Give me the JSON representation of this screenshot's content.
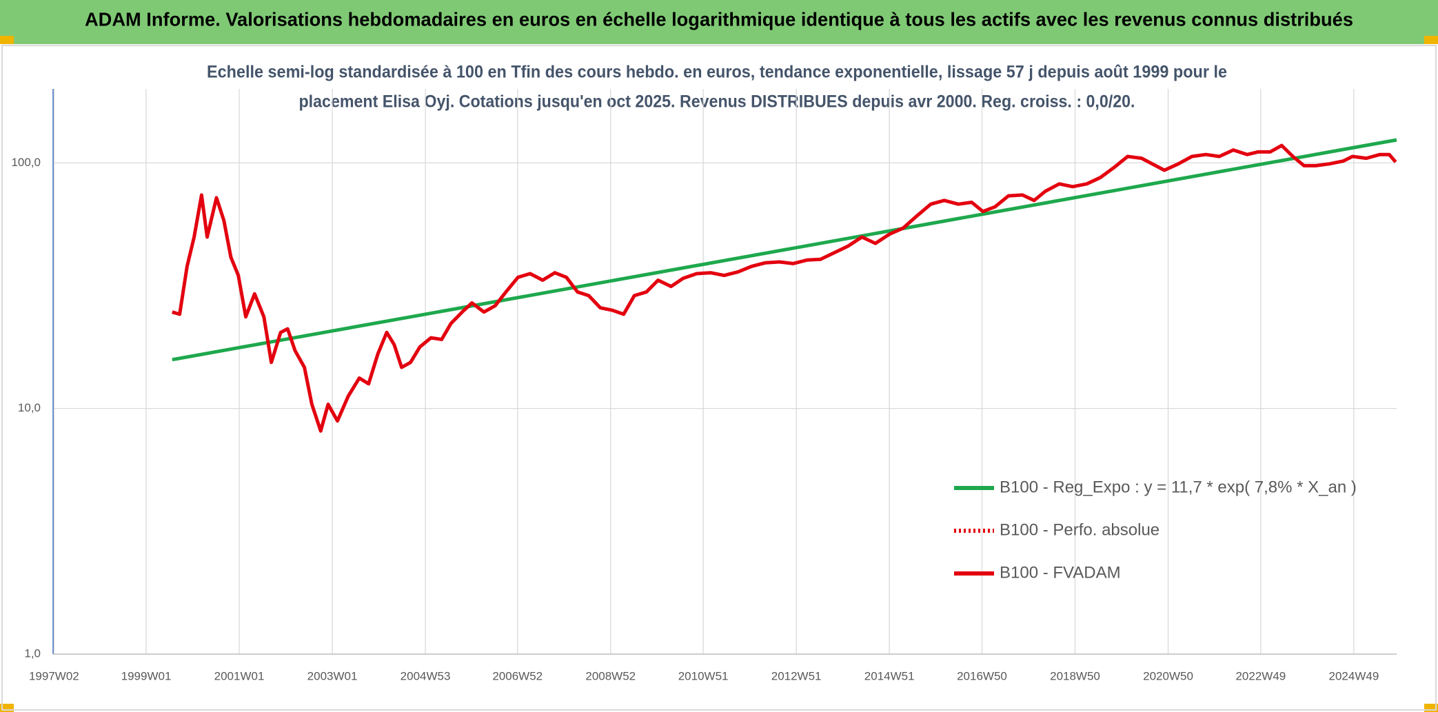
{
  "chart_data": {
    "type": "line",
    "title": "ADAM Informe. Valorisations hebdomadaires en euros en échelle logarithmique identique à tous les actifs avec les revenus connus distribués",
    "subtitle": [
      "Echelle semi-log standardisée à 100 en Tfin des cours hebdo. en euros, tendance exponentielle, lissage 57 j depuis août 1999 pour le",
      "placement Elisa Oyj. Cotations jusqu'en oct 2025. Revenus DISTRIBUES depuis avr 2000. Reg. croiss. : 0,0/20."
    ],
    "log_scale": true,
    "grid": true,
    "legend_position": "right",
    "xlim": [
      1997.0,
      2025.87
    ],
    "xticks": [
      {
        "value": 1997.02,
        "label": "1997W02"
      },
      {
        "value": 1999.0,
        "label": "1999W01"
      },
      {
        "value": 2001.0,
        "label": "2001W01"
      },
      {
        "value": 2003.0,
        "label": "2003W01"
      },
      {
        "value": 2005.0,
        "label": "2004W53"
      },
      {
        "value": 2006.98,
        "label": "2006W52"
      },
      {
        "value": 2008.98,
        "label": "2008W52"
      },
      {
        "value": 2010.97,
        "label": "2010W51"
      },
      {
        "value": 2012.97,
        "label": "2012W51"
      },
      {
        "value": 2014.97,
        "label": "2014W51"
      },
      {
        "value": 2016.96,
        "label": "2016W50"
      },
      {
        "value": 2018.96,
        "label": "2018W50"
      },
      {
        "value": 2020.96,
        "label": "2020W50"
      },
      {
        "value": 2022.95,
        "label": "2022W49"
      },
      {
        "value": 2024.95,
        "label": "2024W49"
      }
    ],
    "ylim": [
      1,
      200
    ],
    "yticks": [
      {
        "value": 1,
        "label": "1,0"
      },
      {
        "value": 10,
        "label": "10,0"
      },
      {
        "value": 100,
        "label": "100,0"
      }
    ],
    "series": [
      {
        "name": "B100 - Reg_Expo : y = 11,7 * exp( 7,8% *  X_an )",
        "color": "#1ea84d",
        "style": "solid",
        "x": [
          1999.56,
          2025.87
        ],
        "values": [
          15.8,
          124
        ]
      },
      {
        "name": "B100 - Perfo. absolue",
        "color": "#e3000f",
        "style": "dotted",
        "x": [],
        "values": []
      },
      {
        "name": "B100 - FVADAM",
        "color": "#e3000f",
        "style": "solid",
        "x": [
          1999.56,
          1999.72,
          1999.88,
          2000.03,
          2000.19,
          2000.31,
          2000.51,
          2000.67,
          2000.82,
          2000.98,
          2001.14,
          2001.33,
          2001.53,
          2001.69,
          2001.89,
          2002.04,
          2002.2,
          2002.4,
          2002.56,
          2002.75,
          2002.91,
          2003.11,
          2003.34,
          2003.58,
          2003.78,
          2003.98,
          2004.17,
          2004.33,
          2004.49,
          2004.68,
          2004.88,
          2005.12,
          2005.35,
          2005.55,
          2005.79,
          2006.0,
          2006.26,
          2006.5,
          2006.73,
          2006.99,
          2007.25,
          2007.52,
          2007.78,
          2008.03,
          2008.27,
          2008.51,
          2008.76,
          2009.02,
          2009.26,
          2009.49,
          2009.75,
          2010.0,
          2010.28,
          2010.54,
          2010.83,
          2011.13,
          2011.42,
          2011.72,
          2012.01,
          2012.31,
          2012.61,
          2012.9,
          2013.2,
          2013.49,
          2013.79,
          2014.08,
          2014.38,
          2014.67,
          2014.97,
          2015.27,
          2015.56,
          2015.86,
          2016.15,
          2016.45,
          2016.74,
          2016.98,
          2017.24,
          2017.53,
          2017.83,
          2018.08,
          2018.32,
          2018.62,
          2018.91,
          2019.21,
          2019.5,
          2019.8,
          2020.09,
          2020.39,
          2020.88,
          2021.18,
          2021.47,
          2021.77,
          2022.06,
          2022.36,
          2022.66,
          2022.89,
          2023.15,
          2023.4,
          2023.64,
          2023.88,
          2024.13,
          2024.43,
          2024.72,
          2024.92,
          2025.22,
          2025.51,
          2025.71,
          2025.85
        ],
        "values": [
          24.7,
          24.2,
          37.9,
          49.9,
          74.0,
          49.9,
          72.1,
          58.2,
          41.3,
          34.8,
          23.6,
          29.3,
          23.6,
          15.4,
          20.4,
          21.1,
          17.2,
          14.7,
          10.4,
          8.1,
          10.4,
          8.9,
          11.2,
          13.3,
          12.6,
          16.7,
          20.4,
          18.2,
          14.7,
          15.4,
          17.8,
          19.4,
          19.1,
          22.2,
          24.7,
          26.9,
          24.7,
          26.2,
          29.8,
          34.2,
          35.4,
          33.3,
          35.7,
          34.2,
          29.8,
          28.8,
          25.7,
          25.1,
          24.2,
          28.8,
          29.8,
          33.3,
          31.4,
          33.9,
          35.4,
          35.7,
          34.8,
          36.0,
          37.9,
          39.2,
          39.5,
          38.9,
          40.2,
          40.5,
          43.1,
          45.8,
          49.9,
          47.0,
          51.2,
          54.3,
          60.8,
          67.9,
          70.3,
          67.9,
          69.1,
          63.4,
          66.2,
          73.4,
          74.0,
          70.3,
          76.6,
          82.1,
          80.0,
          82.1,
          87.1,
          95.8,
          106.2,
          104.4,
          93.3,
          99.1,
          106.2,
          108.1,
          106.2,
          112.8,
          108.1,
          110.8,
          110.8,
          117.7,
          106.2,
          97.4,
          97.4,
          99.1,
          101.7,
          106.2,
          104.4,
          108.1,
          108.1,
          100.8
        ]
      }
    ]
  }
}
